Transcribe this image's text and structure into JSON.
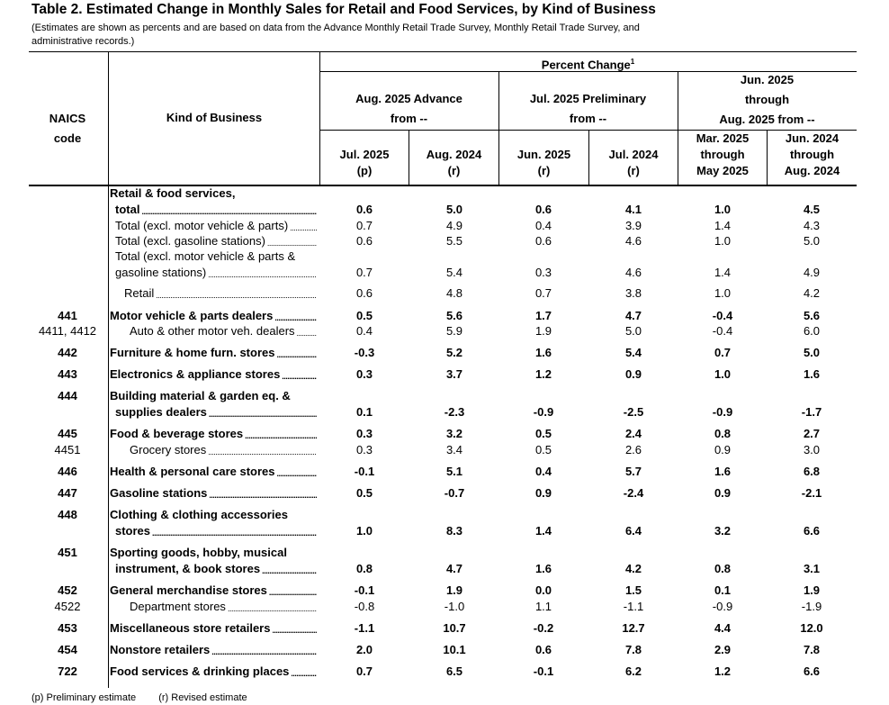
{
  "title": "Table 2.  Estimated Change in Monthly Sales for Retail and Food Services, by Kind of Business",
  "subtitle": "(Estimates are shown as percents and are based on data from the Advance Monthly Retail Trade Survey,  Monthly Retail Trade Survey, and administrative records.)",
  "header": {
    "naics": [
      "NAICS",
      "code"
    ],
    "kind": "Kind of Business",
    "percent_change": "Percent Change",
    "percent_change_sup": "1",
    "group1": [
      "Aug. 2025 Advance",
      "from --"
    ],
    "group2": [
      "Jul. 2025 Preliminary",
      "from --"
    ],
    "group3": [
      "Jun. 2025",
      "through",
      "Aug. 2025 from --"
    ],
    "columns": [
      [
        "Jul. 2025",
        "(p)"
      ],
      [
        "Aug. 2024",
        "(r)"
      ],
      [
        "Jun. 2025",
        "(r)"
      ],
      [
        "Jul. 2024",
        "(r)"
      ],
      [
        "Mar. 2025",
        "through",
        "May 2025"
      ],
      [
        "Jun. 2024",
        "through",
        "Aug. 2024"
      ]
    ]
  },
  "rows": [
    {
      "code": "",
      "label": [
        "Retail & food services,",
        "total"
      ],
      "bold": true,
      "indent": 0,
      "values": [
        "0.6",
        "5.0",
        "0.6",
        "4.1",
        "1.0",
        "4.5"
      ]
    },
    {
      "code": "",
      "label": [
        "Total (excl. motor vehicle & parts)"
      ],
      "bold": false,
      "indent": 6,
      "values": [
        "0.7",
        "4.9",
        "0.4",
        "3.9",
        "1.4",
        "4.3"
      ]
    },
    {
      "code": "",
      "label": [
        "Total (excl. gasoline stations)"
      ],
      "bold": false,
      "indent": 6,
      "values": [
        "0.6",
        "5.5",
        "0.6",
        "4.6",
        "1.0",
        "5.0"
      ]
    },
    {
      "code": "",
      "label": [
        "Total (excl. motor vehicle & parts &",
        "gasoline stations)"
      ],
      "bold": false,
      "indent": 6,
      "values": [
        "0.7",
        "5.4",
        "0.3",
        "4.6",
        "1.4",
        "4.9"
      ]
    },
    {
      "code": "",
      "label": [
        "Retail"
      ],
      "bold": false,
      "indent": 16,
      "values": [
        "0.6",
        "4.8",
        "0.7",
        "3.8",
        "1.0",
        "4.2"
      ]
    },
    {
      "code": "441",
      "label": [
        "Motor vehicle & parts dealers"
      ],
      "bold": true,
      "indent": 0,
      "values": [
        "0.5",
        "5.6",
        "1.7",
        "4.7",
        "-0.4",
        "5.6"
      ]
    },
    {
      "code": "4411, 4412",
      "label": [
        "Auto & other motor veh. dealers"
      ],
      "bold": false,
      "indent": 22,
      "values": [
        "0.4",
        "5.9",
        "1.9",
        "5.0",
        "-0.4",
        "6.0"
      ]
    },
    {
      "code": "442",
      "label": [
        "Furniture & home furn. stores"
      ],
      "bold": true,
      "indent": 0,
      "values": [
        "-0.3",
        "5.2",
        "1.6",
        "5.4",
        "0.7",
        "5.0"
      ]
    },
    {
      "code": "443",
      "label": [
        "Electronics & appliance stores"
      ],
      "bold": true,
      "indent": 0,
      "values": [
        "0.3",
        "3.7",
        "1.2",
        "0.9",
        "1.0",
        "1.6"
      ]
    },
    {
      "code": "444",
      "label": [
        "Building material & garden eq. &",
        "supplies dealers"
      ],
      "bold": true,
      "indent": 0,
      "values": [
        "0.1",
        "-2.3",
        "-0.9",
        "-2.5",
        "-0.9",
        "-1.7"
      ]
    },
    {
      "code": "445",
      "label": [
        "Food & beverage stores"
      ],
      "bold": true,
      "indent": 0,
      "values": [
        "0.3",
        "3.2",
        "0.5",
        "2.4",
        "0.8",
        "2.7"
      ]
    },
    {
      "code": "4451",
      "label": [
        "Grocery stores"
      ],
      "bold": false,
      "indent": 22,
      "values": [
        "0.3",
        "3.4",
        "0.5",
        "2.6",
        "0.9",
        "3.0"
      ]
    },
    {
      "code": "446",
      "label": [
        "Health & personal care stores"
      ],
      "bold": true,
      "indent": 0,
      "values": [
        "-0.1",
        "5.1",
        "0.4",
        "5.7",
        "1.6",
        "6.8"
      ]
    },
    {
      "code": "447",
      "label": [
        "Gasoline stations"
      ],
      "bold": true,
      "indent": 0,
      "values": [
        "0.5",
        "-0.7",
        "0.9",
        "-2.4",
        "0.9",
        "-2.1"
      ]
    },
    {
      "code": "448",
      "label": [
        "Clothing & clothing accessories",
        "stores"
      ],
      "bold": true,
      "indent": 0,
      "values": [
        "1.0",
        "8.3",
        "1.4",
        "6.4",
        "3.2",
        "6.6"
      ]
    },
    {
      "code": "451",
      "label": [
        "Sporting goods, hobby, musical",
        "instrument, & book stores"
      ],
      "bold": true,
      "indent": 0,
      "values": [
        "0.8",
        "4.7",
        "1.6",
        "4.2",
        "0.8",
        "3.1"
      ]
    },
    {
      "code": "452",
      "label": [
        "General merchandise stores"
      ],
      "bold": true,
      "indent": 0,
      "values": [
        "-0.1",
        "1.9",
        "0.0",
        "1.5",
        "0.1",
        "1.9"
      ]
    },
    {
      "code": "4522",
      "label": [
        "Department stores"
      ],
      "bold": false,
      "indent": 22,
      "values": [
        "-0.8",
        "-1.0",
        "1.1",
        "-1.1",
        "-0.9",
        "-1.9"
      ]
    },
    {
      "code": "453",
      "label": [
        "Miscellaneous store retailers"
      ],
      "bold": true,
      "indent": 0,
      "values": [
        "-1.1",
        "10.7",
        "-0.2",
        "12.7",
        "4.4",
        "12.0"
      ]
    },
    {
      "code": "454",
      "label": [
        "Nonstore retailers"
      ],
      "bold": true,
      "indent": 0,
      "values": [
        "2.0",
        "10.1",
        "0.6",
        "7.8",
        "2.9",
        "7.8"
      ]
    },
    {
      "code": "722",
      "label": [
        "Food services & drinking places"
      ],
      "bold": true,
      "indent": 0,
      "values": [
        "0.7",
        "6.5",
        "-0.1",
        "6.2",
        "1.2",
        "6.6"
      ]
    }
  ],
  "footnotes": [
    "(p)  Preliminary estimate",
    "(r)  Revised estimate"
  ]
}
